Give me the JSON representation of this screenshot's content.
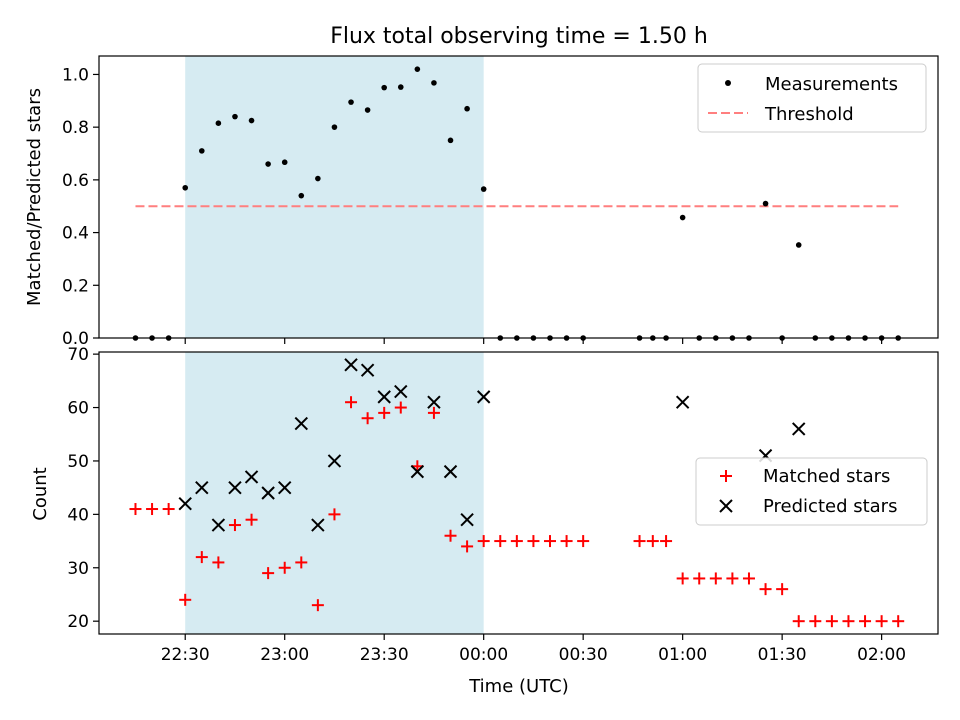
{
  "chart_data": [
    {
      "type": "scatter",
      "title": "Flux total observing time = 1.50 h",
      "ylabel": "Matched/Predicted stars",
      "ylim": [
        0,
        1.07
      ],
      "yticks": [
        0.0,
        0.2,
        0.4,
        0.6,
        0.8,
        1.0
      ],
      "ytick_labels": [
        "0.0",
        "0.2",
        "0.4",
        "0.6",
        "0.8",
        "1.0"
      ],
      "xlim_minutes": [
        -26,
        227
      ],
      "observing_window": {
        "start": "22:30",
        "end": "00:00",
        "color": "#add8e6"
      },
      "threshold": {
        "name": "Threshold",
        "value": 0.5,
        "x_start": "22:15",
        "x_end": "02:05",
        "color": "#ff7f7f"
      },
      "legend": [
        "Measurements",
        "Threshold"
      ],
      "legend_position": "upper right",
      "series": [
        {
          "name": "Measurements",
          "marker": "dot",
          "color": "#000000",
          "points": [
            [
              "22:15",
              0.0
            ],
            [
              "22:20",
              0.0
            ],
            [
              "22:25",
              0.0
            ],
            [
              "22:30",
              0.57
            ],
            [
              "22:35",
              0.71
            ],
            [
              "22:40",
              0.815
            ],
            [
              "22:45",
              0.84
            ],
            [
              "22:50",
              0.825
            ],
            [
              "22:55",
              0.66
            ],
            [
              "23:00",
              0.667
            ],
            [
              "23:05",
              0.54
            ],
            [
              "23:10",
              0.605
            ],
            [
              "23:15",
              0.8
            ],
            [
              "23:20",
              0.895
            ],
            [
              "23:25",
              0.865
            ],
            [
              "23:30",
              0.95
            ],
            [
              "23:35",
              0.952
            ],
            [
              "23:40",
              1.02
            ],
            [
              "23:45",
              0.968
            ],
            [
              "23:50",
              0.75
            ],
            [
              "23:55",
              0.87
            ],
            [
              "00:00",
              0.565
            ],
            [
              "00:05",
              0.0
            ],
            [
              "00:10",
              0.0
            ],
            [
              "00:15",
              0.0
            ],
            [
              "00:20",
              0.0
            ],
            [
              "00:25",
              0.0
            ],
            [
              "00:30",
              0.0
            ],
            [
              "00:47",
              0.0
            ],
            [
              "00:51",
              0.0
            ],
            [
              "00:55",
              0.0
            ],
            [
              "01:00",
              0.457
            ],
            [
              "01:05",
              0.0
            ],
            [
              "01:10",
              0.0
            ],
            [
              "01:15",
              0.0
            ],
            [
              "01:20",
              0.0
            ],
            [
              "01:25",
              0.51
            ],
            [
              "01:30",
              0.0
            ],
            [
              "01:35",
              0.353
            ],
            [
              "01:40",
              0.0
            ],
            [
              "01:45",
              0.0
            ],
            [
              "01:50",
              0.0
            ],
            [
              "01:55",
              0.0
            ],
            [
              "02:00",
              0.0
            ],
            [
              "02:05",
              0.0
            ]
          ]
        }
      ]
    },
    {
      "type": "scatter",
      "xlabel": "Time (UTC)",
      "ylabel": "Count",
      "ylim": [
        17.6,
        70.4
      ],
      "yticks": [
        20,
        30,
        40,
        50,
        60,
        70
      ],
      "ytick_labels": [
        "20",
        "30",
        "40",
        "50",
        "60",
        "70"
      ],
      "xlim_minutes": [
        -26,
        227
      ],
      "xticks": [
        "22:30",
        "23:00",
        "23:30",
        "00:00",
        "00:30",
        "01:00",
        "01:30",
        "02:00"
      ],
      "observing_window": {
        "start": "22:30",
        "end": "00:00",
        "color": "#add8e6"
      },
      "legend": [
        "Matched stars",
        "Predicted stars"
      ],
      "legend_position": "center right",
      "series": [
        {
          "name": "Matched stars",
          "marker": "plus",
          "color": "#ff0000",
          "points": [
            [
              "22:15",
              41
            ],
            [
              "22:20",
              41
            ],
            [
              "22:25",
              41
            ],
            [
              "22:30",
              24
            ],
            [
              "22:35",
              32
            ],
            [
              "22:40",
              31
            ],
            [
              "22:45",
              38
            ],
            [
              "22:50",
              39
            ],
            [
              "22:55",
              29
            ],
            [
              "23:00",
              30
            ],
            [
              "23:05",
              31
            ],
            [
              "23:10",
              23
            ],
            [
              "23:15",
              40
            ],
            [
              "23:20",
              61
            ],
            [
              "23:25",
              58
            ],
            [
              "23:30",
              59
            ],
            [
              "23:35",
              60
            ],
            [
              "23:40",
              49
            ],
            [
              "23:45",
              59
            ],
            [
              "23:50",
              36
            ],
            [
              "23:55",
              34
            ],
            [
              "00:00",
              35
            ],
            [
              "00:05",
              35
            ],
            [
              "00:10",
              35
            ],
            [
              "00:15",
              35
            ],
            [
              "00:20",
              35
            ],
            [
              "00:25",
              35
            ],
            [
              "00:30",
              35
            ],
            [
              "00:47",
              35
            ],
            [
              "00:51",
              35
            ],
            [
              "00:55",
              35
            ],
            [
              "01:00",
              28
            ],
            [
              "01:05",
              28
            ],
            [
              "01:10",
              28
            ],
            [
              "01:15",
              28
            ],
            [
              "01:20",
              28
            ],
            [
              "01:25",
              26
            ],
            [
              "01:30",
              26
            ],
            [
              "01:35",
              20
            ],
            [
              "01:40",
              20
            ],
            [
              "01:45",
              20
            ],
            [
              "01:50",
              20
            ],
            [
              "01:55",
              20
            ],
            [
              "02:00",
              20
            ],
            [
              "02:05",
              20
            ]
          ]
        },
        {
          "name": "Predicted stars",
          "marker": "x",
          "color": "#000000",
          "points": [
            [
              "22:30",
              42
            ],
            [
              "22:35",
              45
            ],
            [
              "22:40",
              38
            ],
            [
              "22:45",
              45
            ],
            [
              "22:50",
              47
            ],
            [
              "22:55",
              44
            ],
            [
              "23:00",
              45
            ],
            [
              "23:05",
              57
            ],
            [
              "23:10",
              38
            ],
            [
              "23:15",
              50
            ],
            [
              "23:20",
              68
            ],
            [
              "23:25",
              67
            ],
            [
              "23:30",
              62
            ],
            [
              "23:35",
              63
            ],
            [
              "23:40",
              48
            ],
            [
              "23:45",
              61
            ],
            [
              "23:50",
              48
            ],
            [
              "23:55",
              39
            ],
            [
              "00:00",
              62
            ],
            [
              "01:00",
              61
            ],
            [
              "01:25",
              51
            ],
            [
              "01:35",
              56
            ]
          ]
        }
      ]
    }
  ]
}
